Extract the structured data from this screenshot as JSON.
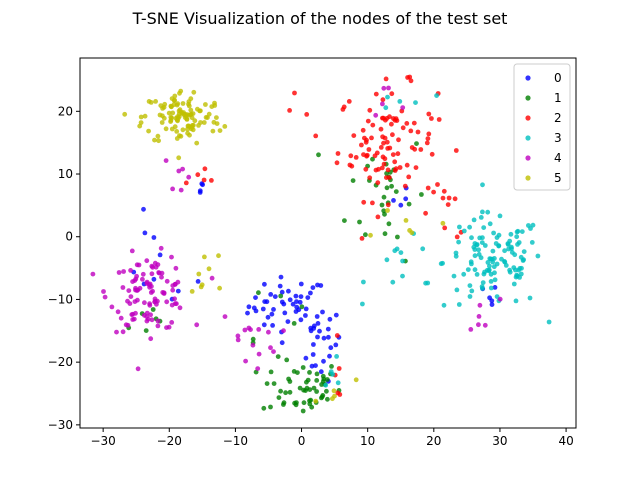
{
  "chart_data": {
    "type": "scatter",
    "title": "T-SNE Visualization of the nodes of the test set",
    "xlabel": "",
    "ylabel": "",
    "xlim": [
      -33.5,
      41.5
    ],
    "ylim": [
      -30.5,
      28.5
    ],
    "xticks": [
      -30,
      -20,
      -10,
      0,
      10,
      20,
      30,
      40
    ],
    "yticks": [
      -30,
      -20,
      -10,
      0,
      10,
      20
    ],
    "grid": false,
    "legend_position": "top-right",
    "series": [
      {
        "name": "0",
        "color": "#0000ff",
        "clusters": [
          {
            "center": [
              -2,
              -11
            ],
            "spread": [
              4,
              3
            ],
            "count": 45
          },
          {
            "center": [
              3,
              -17
            ],
            "spread": [
              2,
              4
            ],
            "count": 25
          },
          {
            "center": [
              -22,
              -5
            ],
            "spread": [
              4,
              5
            ],
            "count": 10
          },
          {
            "center": [
              -15,
              8
            ],
            "spread": [
              1,
              1
            ],
            "count": 4
          },
          {
            "center": [
              27,
              -10
            ],
            "spread": [
              2,
              3
            ],
            "count": 5
          },
          {
            "center": [
              16,
              4
            ],
            "spread": [
              3,
              3
            ],
            "count": 4
          }
        ]
      },
      {
        "name": "1",
        "color": "#008000",
        "clusters": [
          {
            "center": [
              0,
              -24
            ],
            "spread": [
              4,
              3
            ],
            "count": 55
          },
          {
            "center": [
              13,
              7
            ],
            "spread": [
              4,
              7
            ],
            "count": 30
          },
          {
            "center": [
              -23,
              -13
            ],
            "spread": [
              3,
              2
            ],
            "count": 6
          },
          {
            "center": [
              -5,
              -10
            ],
            "spread": [
              3,
              4
            ],
            "count": 6
          }
        ]
      },
      {
        "name": "2",
        "color": "#ff0000",
        "clusters": [
          {
            "center": [
              13,
              15
            ],
            "spread": [
              5,
              6
            ],
            "count": 100
          },
          {
            "center": [
              22,
              4
            ],
            "spread": [
              3,
              3
            ],
            "count": 10
          },
          {
            "center": [
              -15,
              9
            ],
            "spread": [
              2,
              2
            ],
            "count": 5
          },
          {
            "center": [
              5,
              -21
            ],
            "spread": [
              2,
              3
            ],
            "count": 5
          },
          {
            "center": [
              -2,
              20
            ],
            "spread": [
              2,
              2
            ],
            "count": 3
          }
        ]
      },
      {
        "name": "3",
        "color": "#00bfbf",
        "clusters": [
          {
            "center": [
              29,
              -4
            ],
            "spread": [
              5,
              5
            ],
            "count": 120
          },
          {
            "center": [
              16,
              -5
            ],
            "spread": [
              4,
              3
            ],
            "count": 12
          },
          {
            "center": [
              5,
              -22
            ],
            "spread": [
              2,
              3
            ],
            "count": 5
          },
          {
            "center": [
              15,
              21
            ],
            "spread": [
              3,
              3
            ],
            "count": 5
          }
        ]
      },
      {
        "name": "4",
        "color": "#bf00bf",
        "clusters": [
          {
            "center": [
              -23,
              -9
            ],
            "spread": [
              4,
              4
            ],
            "count": 100
          },
          {
            "center": [
              -8,
              -16
            ],
            "spread": [
              3,
              3
            ],
            "count": 15
          },
          {
            "center": [
              27,
              -13
            ],
            "spread": [
              2,
              2
            ],
            "count": 6
          },
          {
            "center": [
              -19,
              10
            ],
            "spread": [
              2,
              3
            ],
            "count": 6
          },
          {
            "center": [
              12,
              20
            ],
            "spread": [
              3,
              3
            ],
            "count": 5
          }
        ]
      },
      {
        "name": "5",
        "color": "#bfbf00",
        "clusters": [
          {
            "center": [
              -18,
              19
            ],
            "spread": [
              4,
              3
            ],
            "count": 110
          },
          {
            "center": [
              -14,
              -5
            ],
            "spread": [
              2,
              3
            ],
            "count": 8
          },
          {
            "center": [
              16,
              2
            ],
            "spread": [
              3,
              2
            ],
            "count": 6
          },
          {
            "center": [
              5,
              -24
            ],
            "spread": [
              2,
              2
            ],
            "count": 5
          }
        ]
      }
    ]
  }
}
